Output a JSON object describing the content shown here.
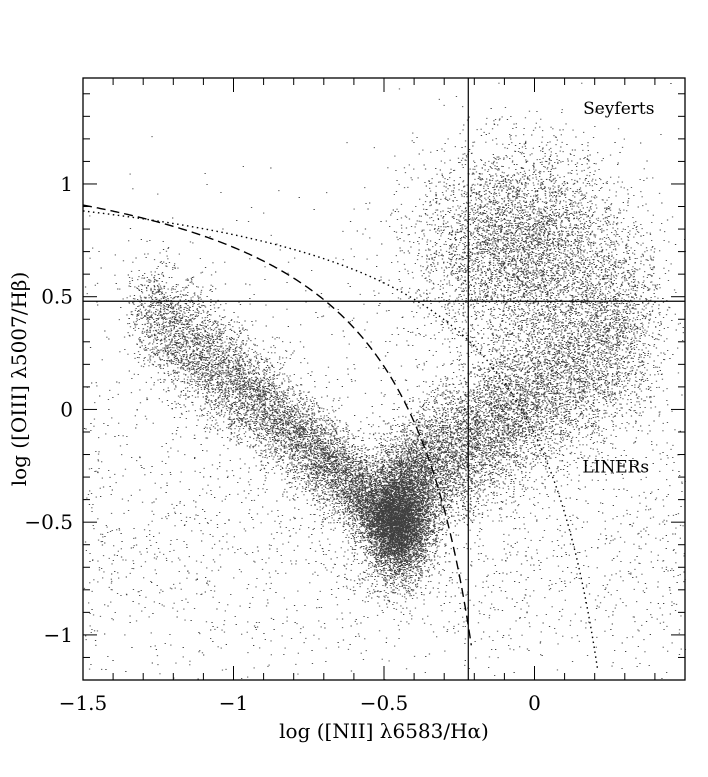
{
  "chart_data": {
    "type": "scatter",
    "xlabel": "log ([NII] λ6583/Hα)",
    "ylabel": "log ([OIII] λ5007/Hβ)",
    "xlim": [
      -1.5,
      0.5
    ],
    "ylim": [
      -1.2,
      1.47
    ],
    "xticks": [
      {
        "value": -1.5,
        "label": "−1.5"
      },
      {
        "value": -1,
        "label": "−1"
      },
      {
        "value": -0.5,
        "label": "−0.5"
      },
      {
        "value": 0,
        "label": "0"
      }
    ],
    "yticks": [
      {
        "value": 1,
        "label": "1"
      },
      {
        "value": 0.5,
        "label": "0.5"
      },
      {
        "value": 0,
        "label": "0"
      },
      {
        "value": -0.5,
        "label": "−0.5"
      },
      {
        "value": -1,
        "label": "−1"
      }
    ],
    "grid": false,
    "annotations": [
      {
        "text": "Seyferts",
        "x": 0.28,
        "y": 1.31
      },
      {
        "text": "LINERs",
        "x": 0.27,
        "y": -0.28
      }
    ],
    "reference_lines": {
      "vertical_x": -0.22,
      "horizontal_y": 0.48
    },
    "curves": [
      {
        "style": "dashed",
        "formula": "0.61/(x-0.05)+1.3",
        "x_range": [
          -1.5,
          -0.21
        ]
      },
      {
        "style": "dotted",
        "formula": "0.61/(x-0.47)+1.19",
        "x_range": [
          -1.5,
          0.21
        ]
      }
    ],
    "point_density": [
      {
        "region": "star-forming branch",
        "x_range": [
          -1.3,
          -0.4
        ],
        "y_range": [
          0.55,
          -0.75
        ],
        "relative_density": "high"
      },
      {
        "region": "central peak",
        "center": [
          -0.45,
          -0.5
        ],
        "relative_density": "highest"
      },
      {
        "region": "AGN branch",
        "x_range": [
          -0.45,
          0.35
        ],
        "y_range": [
          -0.4,
          0.55
        ],
        "relative_density": "high"
      },
      {
        "region": "Seyfert cloud",
        "center": [
          -0.05,
          0.75
        ],
        "relative_density": "moderate"
      }
    ]
  }
}
